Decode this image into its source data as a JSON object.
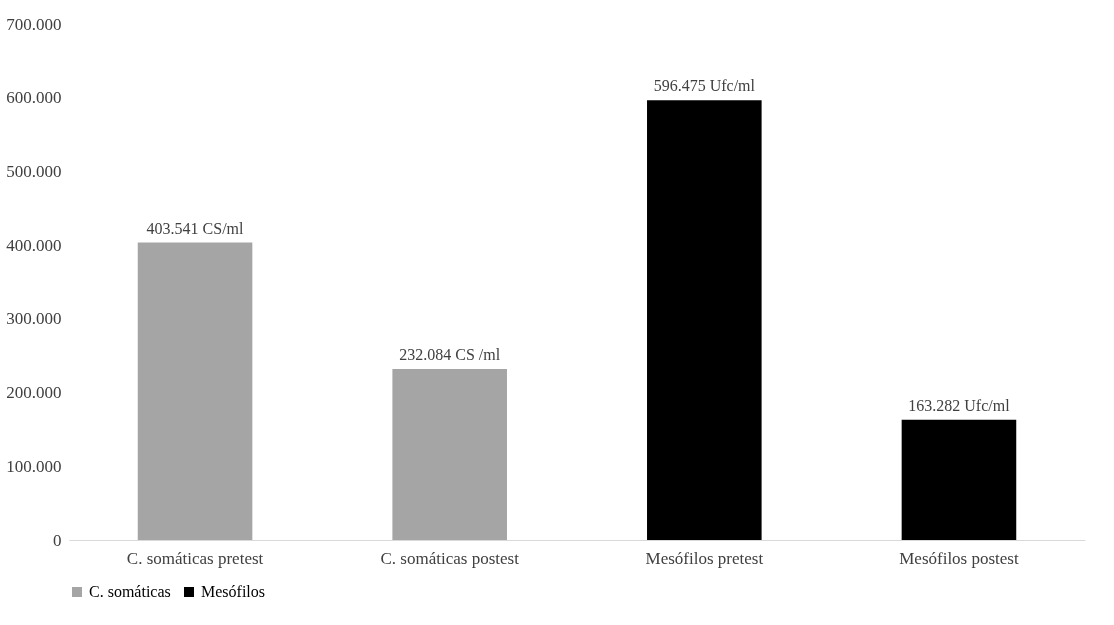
{
  "chart_data": {
    "type": "bar",
    "categories": [
      "C. somáticas pretest",
      "C. somáticas postest",
      "Mesófilos pretest",
      "Mesófilos postest"
    ],
    "series": [
      {
        "name": "C. somáticas",
        "color": "#a5a5a5",
        "values": [
          403541,
          232084,
          null,
          null
        ],
        "value_labels": [
          "403.541 CS/ml",
          "232.084 CS /ml",
          null,
          null
        ]
      },
      {
        "name": "Mesófilos",
        "color": "#000000",
        "values": [
          null,
          null,
          596475,
          163282
        ],
        "value_labels": [
          null,
          null,
          "596.475 Ufc/ml",
          "163.282 Ufc/ml"
        ]
      }
    ],
    "ylim": [
      0,
      700000
    ],
    "yticks": [
      0,
      {
        "value": 100000,
        "label": "100.000"
      },
      {
        "value": 200000,
        "label": "200.000"
      },
      {
        "value": 300000,
        "label": "300.000"
      },
      {
        "value": 400000,
        "label": "400.000"
      },
      {
        "value": 500000,
        "label": "500.000"
      },
      {
        "value": 600000,
        "label": "600.000"
      },
      {
        "value": 700000,
        "label": "700.000"
      }
    ],
    "grid": false,
    "legend": "bottom"
  }
}
